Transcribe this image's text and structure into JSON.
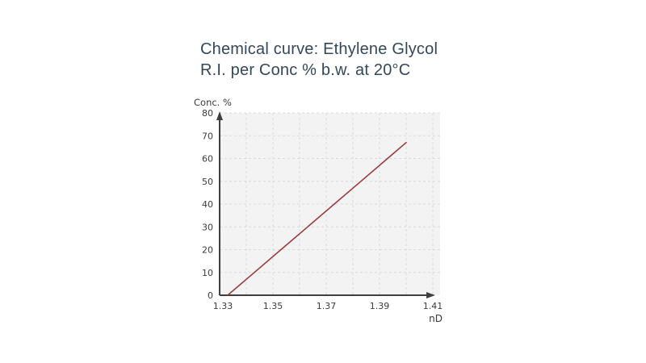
{
  "title": {
    "line1": "Chemical curve: Ethylene Glycol",
    "line2": "R.I. per Conc % b.w. at 20°C",
    "color": "#33475b"
  },
  "chart_data": {
    "type": "line",
    "title": "Chemical curve: Ethylene Glycol R.I. per Conc % b.w. at 20°C",
    "xlabel": "nD",
    "ylabel": "Conc. %",
    "xlim": [
      1.33,
      1.41
    ],
    "ylim": [
      0,
      80
    ],
    "x_ticks": [
      1.33,
      1.35,
      1.37,
      1.39,
      1.41
    ],
    "x_tick_labels": [
      "1.33",
      "1.35",
      "1.37",
      "1.39",
      "1.41"
    ],
    "y_ticks": [
      0,
      10,
      20,
      30,
      40,
      50,
      60,
      70,
      80
    ],
    "x_minor_grid_step": 0.01,
    "grid": true,
    "grid_style": "dashed",
    "legend_position": "none",
    "series": [
      {
        "name": "Ethylene Glycol R.I. per Conc % b.w. at 20°C",
        "color": "#9c3a3c",
        "points": [
          {
            "x": 1.333,
            "y": 0
          },
          {
            "x": 1.343,
            "y": 10
          },
          {
            "x": 1.353,
            "y": 20
          },
          {
            "x": 1.363,
            "y": 30
          },
          {
            "x": 1.373,
            "y": 40
          },
          {
            "x": 1.383,
            "y": 50
          },
          {
            "x": 1.393,
            "y": 60
          },
          {
            "x": 1.4,
            "y": 67
          }
        ]
      }
    ],
    "colors": {
      "plot_background": "#f3f3f3",
      "grid": "#d8dbde",
      "axis": "#3f3f3f",
      "tick_text": "#3a3a3a"
    }
  }
}
